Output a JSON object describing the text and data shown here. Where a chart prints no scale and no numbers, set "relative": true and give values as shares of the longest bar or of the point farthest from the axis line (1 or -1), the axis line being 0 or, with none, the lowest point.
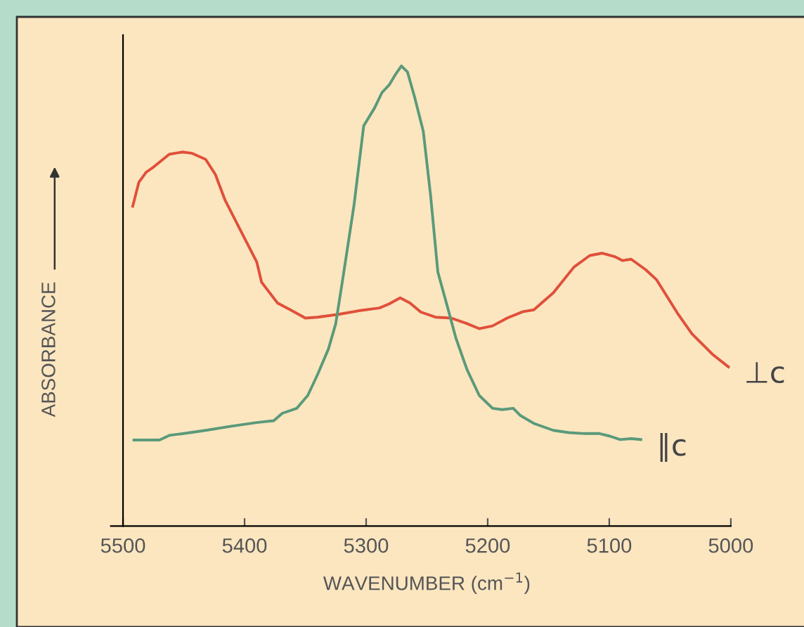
{
  "chart_data": {
    "type": "line",
    "relative": true,
    "xlabel": "WAVENUMBER (cm$^{−1}$)",
    "ylabel": "ABSORBANCE",
    "xlim": [
      5500,
      5000
    ],
    "xticks": [
      5500,
      5400,
      5300,
      5200,
      5100,
      5000
    ],
    "grid": false,
    "legend": false,
    "marker": "none",
    "line_style": "solid",
    "series": [
      {
        "name": "⊥c",
        "color": "#e0503a",
        "x": [
          5492,
          5487,
          5481,
          5475,
          5462,
          5451,
          5443,
          5432,
          5424,
          5416,
          5403,
          5390,
          5386,
          5373,
          5361,
          5350,
          5340,
          5323,
          5306,
          5289,
          5281,
          5272,
          5264,
          5255,
          5243,
          5230,
          5217,
          5207,
          5196,
          5184,
          5171,
          5162,
          5146,
          5129,
          5116,
          5106,
          5095,
          5089,
          5082,
          5070,
          5061,
          5044,
          5032,
          5015,
          5002
        ],
        "values": [
          0.695,
          0.747,
          0.769,
          0.78,
          0.808,
          0.813,
          0.81,
          0.797,
          0.764,
          0.708,
          0.641,
          0.574,
          0.53,
          0.485,
          0.468,
          0.452,
          0.454,
          0.46,
          0.468,
          0.474,
          0.483,
          0.496,
          0.485,
          0.465,
          0.454,
          0.452,
          0.44,
          0.429,
          0.435,
          0.452,
          0.466,
          0.47,
          0.507,
          0.563,
          0.588,
          0.593,
          0.585,
          0.577,
          0.58,
          0.557,
          0.535,
          0.463,
          0.418,
          0.373,
          0.346
        ]
      },
      {
        "name": "∥c",
        "color": "#5a9a7a",
        "x": [
          5491,
          5470,
          5462,
          5445,
          5432,
          5411,
          5390,
          5376,
          5369,
          5357,
          5348,
          5340,
          5331,
          5325,
          5319,
          5310,
          5302,
          5293,
          5287,
          5281,
          5276,
          5271,
          5266,
          5260,
          5253,
          5247,
          5241,
          5234,
          5226,
          5217,
          5207,
          5196,
          5188,
          5179,
          5173,
          5162,
          5146,
          5133,
          5120,
          5108,
          5099,
          5091,
          5082,
          5074
        ],
        "values": [
          0.187,
          0.187,
          0.197,
          0.203,
          0.208,
          0.217,
          0.225,
          0.229,
          0.245,
          0.256,
          0.284,
          0.329,
          0.385,
          0.44,
          0.541,
          0.697,
          0.87,
          0.909,
          0.942,
          0.959,
          0.981,
          1.0,
          0.987,
          0.931,
          0.858,
          0.719,
          0.552,
          0.485,
          0.407,
          0.34,
          0.284,
          0.256,
          0.253,
          0.256,
          0.24,
          0.223,
          0.208,
          0.203,
          0.201,
          0.201,
          0.195,
          0.188,
          0.19,
          0.188
        ]
      }
    ]
  }
}
